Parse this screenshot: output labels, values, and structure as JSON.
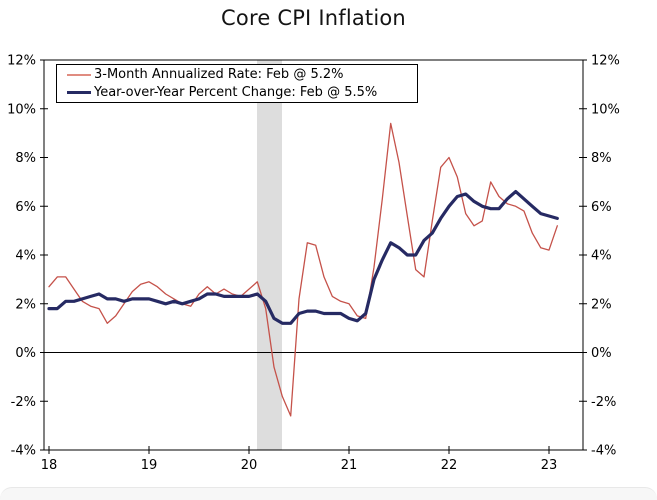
{
  "page": {
    "title": "Core CPI Inflation"
  },
  "colors": {
    "axis": "#000000",
    "background": "#ffffff",
    "recession_band": "#DDDDDD",
    "series_3m": "#C5524A",
    "series_3m_legend_swatch": "#E08C80",
    "series_yoy": "#262A63",
    "bottom_strip": "#f7f7f7"
  },
  "chart_data": {
    "type": "line",
    "title": "Core CPI Inflation",
    "xlabel": "",
    "ylabel": "",
    "grid": "off",
    "legend_position": "top-left",
    "xlim": [
      2017.95,
      2023.34
    ],
    "ylim": [
      -4,
      12
    ],
    "zero_line": 0,
    "x_start": 2018.0,
    "x_step_years": 0.0833333,
    "x_tick_values": [
      2018,
      2019,
      2020,
      2021,
      2022,
      2023
    ],
    "x_tick_labels": [
      "18",
      "19",
      "20",
      "21",
      "22",
      "23"
    ],
    "y_tick_values": [
      -4,
      -2,
      0,
      2,
      4,
      6,
      8,
      10,
      12
    ],
    "y_tick_labels": [
      "-4%",
      "-2%",
      "0%",
      "2%",
      "4%",
      "6%",
      "8%",
      "10%",
      "12%"
    ],
    "y_axis_sides": "both",
    "recession_band": {
      "from": 2020.08,
      "to": 2020.33,
      "color": "#DDDDDD"
    },
    "series": [
      {
        "name": "3-Month Annualized Rate",
        "legend_label": "3-Month Annualized Rate: Feb @ 5.2%",
        "latest_point": {
          "label": "Feb",
          "value": 5.2
        },
        "color": "#C5524A",
        "legend_swatch_color": "#E08C80",
        "stroke_width": 1.3,
        "values": [
          2.7,
          3.1,
          3.1,
          2.6,
          2.1,
          1.9,
          1.8,
          1.2,
          1.5,
          2.0,
          2.5,
          2.8,
          2.9,
          2.7,
          2.4,
          2.2,
          2.0,
          1.9,
          2.4,
          2.7,
          2.4,
          2.6,
          2.4,
          2.3,
          2.6,
          2.9,
          1.8,
          -0.6,
          -1.8,
          -2.6,
          2.2,
          4.5,
          4.4,
          3.1,
          2.3,
          2.1,
          2.0,
          1.5,
          1.4,
          3.5,
          6.3,
          9.4,
          7.8,
          5.6,
          3.4,
          3.1,
          5.4,
          7.6,
          8.0,
          7.2,
          5.7,
          5.2,
          5.4,
          7.0,
          6.4,
          6.1,
          6.0,
          5.8,
          4.9,
          4.3,
          4.2,
          5.2
        ]
      },
      {
        "name": "Year-over-Year Percent Change",
        "legend_label": "Year-over-Year Percent Change: Feb @ 5.5%",
        "latest_point": {
          "label": "Feb",
          "value": 5.5
        },
        "color": "#262A63",
        "legend_swatch_color": "#262A63",
        "stroke_width": 3.2,
        "values": [
          1.8,
          1.8,
          2.1,
          2.1,
          2.2,
          2.3,
          2.4,
          2.2,
          2.2,
          2.1,
          2.2,
          2.2,
          2.2,
          2.1,
          2.0,
          2.1,
          2.0,
          2.1,
          2.2,
          2.4,
          2.4,
          2.3,
          2.3,
          2.3,
          2.3,
          2.4,
          2.1,
          1.4,
          1.2,
          1.2,
          1.6,
          1.7,
          1.7,
          1.6,
          1.6,
          1.6,
          1.4,
          1.3,
          1.6,
          3.0,
          3.8,
          4.5,
          4.3,
          4.0,
          4.0,
          4.6,
          4.9,
          5.5,
          6.0,
          6.4,
          6.5,
          6.2,
          6.0,
          5.9,
          5.9,
          6.3,
          6.6,
          6.3,
          6.0,
          5.7,
          5.6,
          5.5
        ]
      }
    ]
  }
}
